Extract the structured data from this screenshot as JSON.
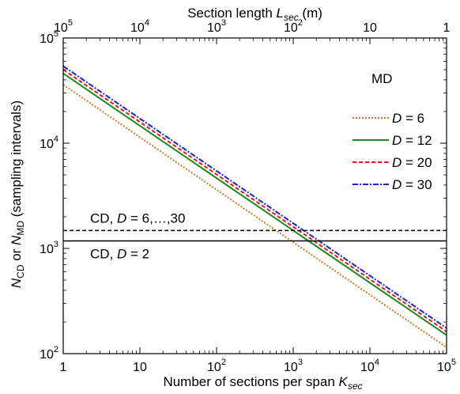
{
  "chart_data": {
    "type": "line",
    "xscale": "log",
    "yscale": "log",
    "xlim": [
      1,
      100000
    ],
    "ylim": [
      100,
      100000
    ],
    "top_xlim": [
      100000,
      1
    ],
    "xlabel": {
      "main": "Number of sections per span ",
      "italic": "K",
      "sub": "sec"
    },
    "top_xlabel": {
      "main": "Section length ",
      "italic": "L",
      "sub": "sec",
      "unit": " (m)"
    },
    "ylabel": {
      "n1": "N",
      "s1": "CD",
      "mid": " or ",
      "n2": "N",
      "s2": "MD",
      "tail": " (sampling intervals)"
    },
    "x_ticks": [
      {
        "mantissa": "1",
        "exp": ""
      },
      {
        "mantissa": "10",
        "exp": ""
      },
      {
        "mantissa": "10",
        "exp": "2"
      },
      {
        "mantissa": "10",
        "exp": "3"
      },
      {
        "mantissa": "10",
        "exp": "4"
      },
      {
        "mantissa": "10",
        "exp": "5"
      }
    ],
    "top_x_ticks": [
      {
        "mantissa": "10",
        "exp": "5"
      },
      {
        "mantissa": "10",
        "exp": "4"
      },
      {
        "mantissa": "10",
        "exp": "3"
      },
      {
        "mantissa": "10",
        "exp": "2"
      },
      {
        "mantissa": "10",
        "exp": ""
      },
      {
        "mantissa": "1",
        "exp": ""
      }
    ],
    "y_ticks": [
      {
        "mantissa": "10",
        "exp": "2"
      },
      {
        "mantissa": "10",
        "exp": "3"
      },
      {
        "mantissa": "10",
        "exp": "4"
      },
      {
        "mantissa": "10",
        "exp": "5"
      }
    ],
    "legend": {
      "title": "MD",
      "position": "top-right"
    },
    "series": [
      {
        "name": "D = 6",
        "label_var": "D",
        "label_val": " = 6",
        "color": "#d07a1e",
        "dash": "2,2",
        "x": [
          1,
          100000
        ],
        "y": [
          36000,
          115
        ]
      },
      {
        "name": "D = 12",
        "label_var": "D",
        "label_val": " = 12",
        "color": "#1a8a1a",
        "dash": "",
        "x": [
          1,
          100000
        ],
        "y": [
          46000,
          150
        ]
      },
      {
        "name": "D = 20",
        "label_var": "D",
        "label_val": " = 20",
        "color": "#e01a1a",
        "dash": "5,3",
        "x": [
          1,
          100000
        ],
        "y": [
          50000,
          162
        ]
      },
      {
        "name": "D = 30",
        "label_var": "D",
        "label_val": " = 30",
        "color": "#2020cc",
        "dash": "7,2,2,2",
        "x": [
          1,
          100000
        ],
        "y": [
          54000,
          175
        ]
      }
    ],
    "hlines": [
      {
        "label_pre": "CD, ",
        "label_var": "D",
        "label_post": " = 6,…,30",
        "y": 1480,
        "dash": "5,3",
        "color": "#000000"
      },
      {
        "label_pre": "CD, ",
        "label_var": "D",
        "label_post": " = 2",
        "y": 1180,
        "dash": "",
        "color": "#000000"
      }
    ]
  }
}
